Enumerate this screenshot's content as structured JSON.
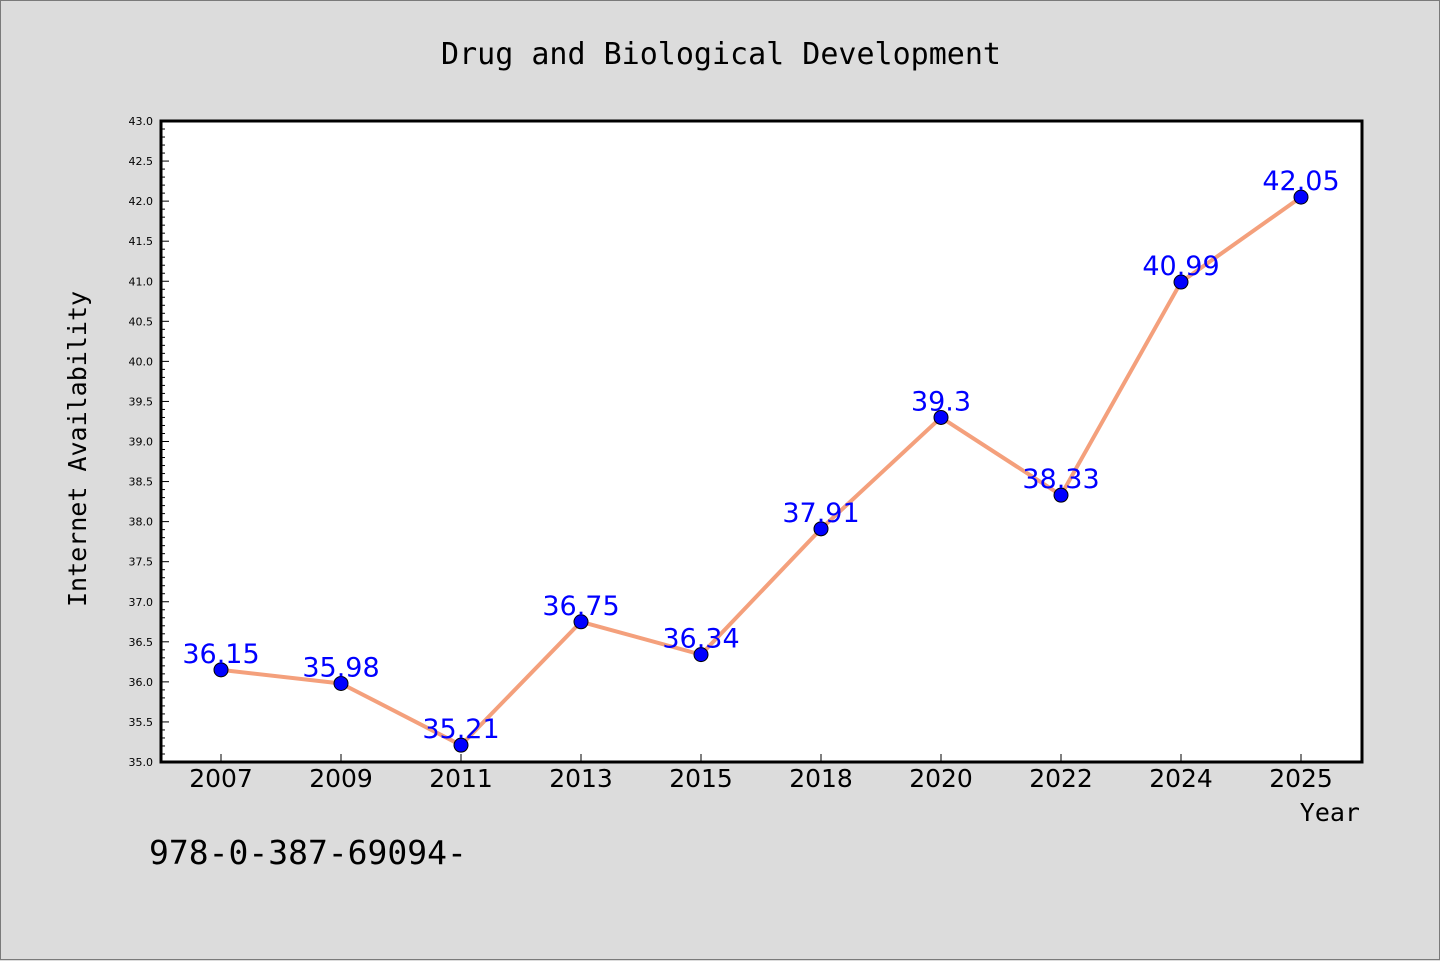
{
  "chart_data": {
    "type": "line",
    "title": "Drug and Biological Development",
    "xlabel": "Year",
    "ylabel": "Internet Availability",
    "categories": [
      "2007",
      "2009",
      "2011",
      "2013",
      "2015",
      "2018",
      "2020",
      "2022",
      "2024",
      "2025"
    ],
    "values": [
      36.15,
      35.98,
      35.21,
      36.75,
      36.34,
      37.91,
      39.3,
      38.33,
      40.99,
      42.05
    ],
    "data_labels": [
      "36.15",
      "35.98",
      "35.21",
      "36.75",
      "36.34",
      "37.91",
      "39.3",
      "38.33",
      "40.99",
      "42.05"
    ],
    "ylim": [
      35.0,
      43.0
    ],
    "yticks": [
      "35.0",
      "35.5",
      "36.0",
      "36.5",
      "37.0",
      "37.5",
      "38.0",
      "38.5",
      "39.0",
      "39.5",
      "40.0",
      "40.5",
      "41.0",
      "41.5",
      "42.0",
      "42.5",
      "43.0"
    ],
    "grid": false,
    "legend": "none",
    "colors": {
      "line": "#f4a07c",
      "marker": "#0000ff",
      "label": "#0000ff",
      "plot_bg": "#ffffff",
      "page_bg": "#dcdcdc"
    }
  },
  "footer": {
    "code": "978-0-387-69094-"
  }
}
